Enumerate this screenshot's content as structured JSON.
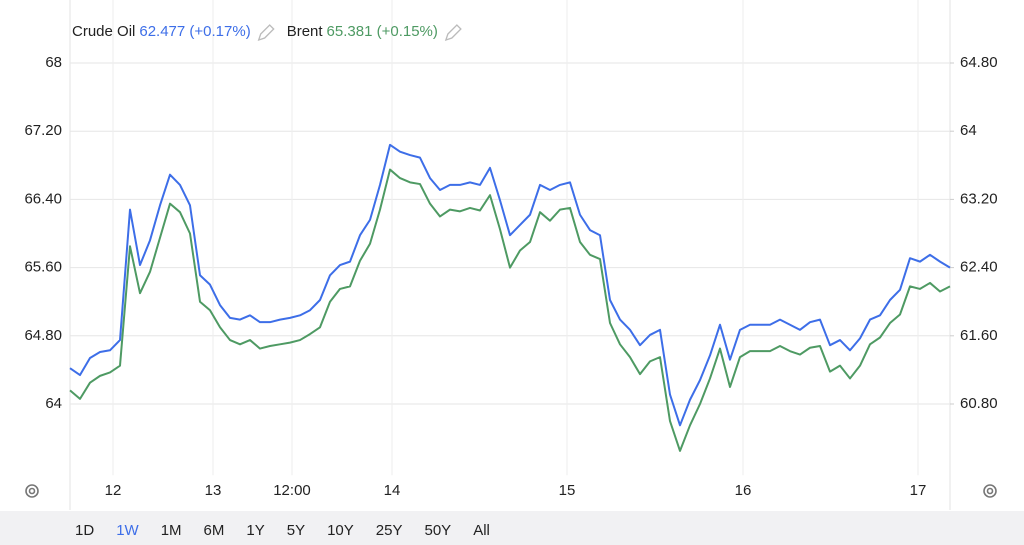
{
  "chart_data": {
    "type": "line",
    "series": [
      {
        "name": "Crude Oil",
        "quote": "62.477 (+0.17%)",
        "color": "#3d6ee8",
        "axis": "y2",
        "values": [
          61.22,
          61.14,
          61.34,
          61.41,
          61.43,
          61.55,
          63.08,
          62.43,
          62.72,
          63.13,
          63.49,
          63.37,
          63.13,
          62.31,
          62.2,
          61.96,
          61.81,
          61.79,
          61.84,
          61.76,
          61.76,
          61.79,
          61.81,
          61.84,
          61.9,
          62.02,
          62.31,
          62.43,
          62.47,
          62.78,
          62.96,
          63.37,
          63.84,
          63.76,
          63.72,
          63.69,
          63.45,
          63.31,
          63.37,
          63.37,
          63.4,
          63.37,
          63.57,
          63.19,
          62.78,
          62.9,
          63.02,
          63.37,
          63.31,
          63.37,
          63.4,
          63.02,
          62.84,
          62.78,
          62.02,
          61.79,
          61.67,
          61.49,
          61.61,
          61.67,
          60.91,
          60.55,
          60.85,
          61.08,
          61.37,
          61.73,
          61.32,
          61.67,
          61.73,
          61.73,
          61.73,
          61.79,
          61.73,
          61.67,
          61.76,
          61.79,
          61.49,
          61.55,
          61.43,
          61.57,
          61.79,
          61.84,
          62.02,
          62.14,
          62.51,
          62.47,
          62.55,
          62.47,
          62.4
        ]
      },
      {
        "name": "Brent",
        "quote": "65.381 (+0.15%)",
        "color": "#4e9a63",
        "values": [
          64.16,
          64.06,
          64.25,
          64.33,
          64.37,
          64.45,
          65.85,
          65.3,
          65.55,
          65.95,
          66.35,
          66.25,
          66.0,
          65.2,
          65.1,
          64.9,
          64.75,
          64.7,
          64.75,
          64.65,
          64.68,
          64.7,
          64.72,
          64.75,
          64.82,
          64.9,
          65.2,
          65.35,
          65.38,
          65.68,
          65.88,
          66.28,
          66.75,
          66.65,
          66.6,
          66.58,
          66.35,
          66.2,
          66.28,
          66.26,
          66.3,
          66.27,
          66.45,
          66.05,
          65.6,
          65.8,
          65.9,
          66.25,
          66.15,
          66.28,
          66.3,
          65.9,
          65.75,
          65.7,
          64.95,
          64.7,
          64.55,
          64.35,
          64.5,
          64.55,
          63.8,
          63.45,
          63.75,
          64.0,
          64.3,
          64.65,
          64.2,
          64.55,
          64.62,
          64.62,
          64.62,
          64.68,
          64.62,
          64.58,
          64.66,
          64.68,
          64.38,
          64.45,
          64.3,
          64.45,
          64.7,
          64.78,
          64.95,
          65.05,
          65.38,
          65.35,
          65.42,
          65.32,
          65.38
        ]
      }
    ],
    "xlim": [
      0,
      88
    ],
    "xticks": [
      {
        "value": 4.3,
        "label": "12"
      },
      {
        "value": 14.3,
        "label": "13"
      },
      {
        "value": 22.2,
        "label": "12:00"
      },
      {
        "value": 32.2,
        "label": "14"
      },
      {
        "value": 49.7,
        "label": "15"
      },
      {
        "value": 67.3,
        "label": "16"
      },
      {
        "value": 84.8,
        "label": "17"
      }
    ],
    "ylim": [
      63.2,
      68.6
    ],
    "yticks": [
      64,
      {
        "value": 64.8,
        "label": "64.80"
      },
      {
        "value": 65.6,
        "label": "65.60"
      },
      {
        "value": 66.4,
        "label": "66.40"
      },
      {
        "value": 67.2,
        "label": "67.20"
      },
      68
    ],
    "y2lim": [
      60.0,
      65.4
    ],
    "y2ticks": [
      {
        "value": 60.8,
        "label": "60.80"
      },
      {
        "value": 61.6,
        "label": "61.60"
      },
      {
        "value": 62.4,
        "label": "62.40"
      },
      {
        "value": 63.2,
        "label": "63.20"
      },
      64,
      {
        "value": 64.8,
        "label": "64.80"
      }
    ],
    "grid": true,
    "range_buttons": [
      "1D",
      "1W",
      "1M",
      "6M",
      "1Y",
      "5Y",
      "10Y",
      "25Y",
      "50Y",
      "All"
    ],
    "active_range": 1,
    "active_color": "#3d6ee8"
  }
}
